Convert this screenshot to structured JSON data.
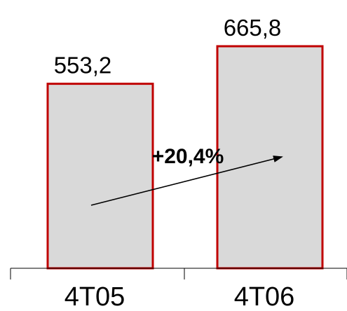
{
  "chart_data": {
    "type": "bar",
    "categories": [
      "4T05",
      "4T06"
    ],
    "values": [
      553.2,
      665.8
    ],
    "value_labels": [
      "553,2",
      "665,8"
    ],
    "annotation": "+20,4%",
    "title": "",
    "xlabel": "",
    "ylabel": "",
    "ylim": [
      0,
      665.8
    ],
    "grid": false,
    "legend": "none",
    "colors": {
      "bar_fill": "#d9d9d9",
      "bar_border": "#c00000",
      "axis": "#000000",
      "arrow": "#000000"
    }
  }
}
